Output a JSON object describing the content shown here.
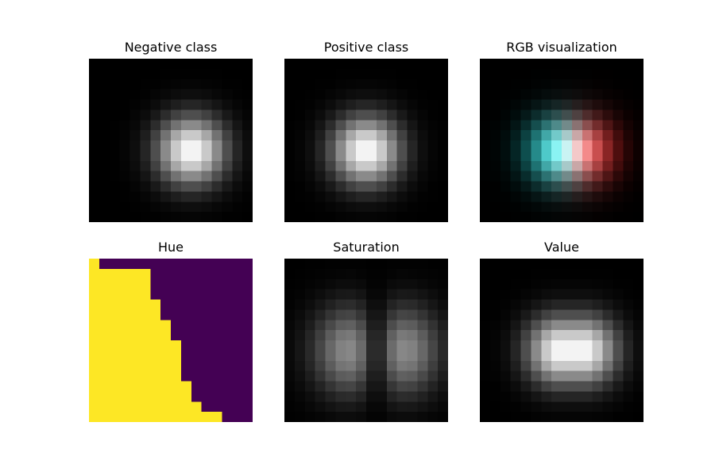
{
  "figure": {
    "background": "#ffffff"
  },
  "chart_data": [
    {
      "type": "heatmap",
      "title": "Negative class",
      "colormap": "gray",
      "grid_size": [
        16,
        16
      ],
      "blob": {
        "center": [
          9.5,
          8.5
        ],
        "sigma": 2.3,
        "peak": 1.0
      },
      "axes_visible": false
    },
    {
      "type": "heatmap",
      "title": "Positive class",
      "colormap": "gray",
      "grid_size": [
        16,
        16
      ],
      "blob": {
        "center": [
          7.5,
          8.5
        ],
        "sigma": 2.3,
        "peak": 1.0
      },
      "axes_visible": false
    },
    {
      "type": "heatmap",
      "title": "RGB visualization",
      "colormap": "rgb",
      "grid_size": [
        16,
        16
      ],
      "channels": {
        "red": "negative",
        "green_blue": "positive"
      },
      "axes_visible": false
    },
    {
      "type": "heatmap",
      "title": "Hue",
      "colormap": "viridis",
      "grid_size": [
        16,
        16
      ],
      "low_color": "#440154",
      "high_color": "#fde725",
      "boundary_row_cols": [
        1,
        6,
        6,
        6,
        7,
        7,
        8,
        8,
        9,
        9,
        9,
        9,
        10,
        10,
        11,
        13
      ],
      "axes_visible": false
    },
    {
      "type": "heatmap",
      "title": "Saturation",
      "colormap": "gray",
      "grid_size": [
        16,
        16
      ],
      "axes_visible": false
    },
    {
      "type": "heatmap",
      "title": "Value",
      "colormap": "gray",
      "grid_size": [
        16,
        16
      ],
      "axes_visible": false
    }
  ]
}
